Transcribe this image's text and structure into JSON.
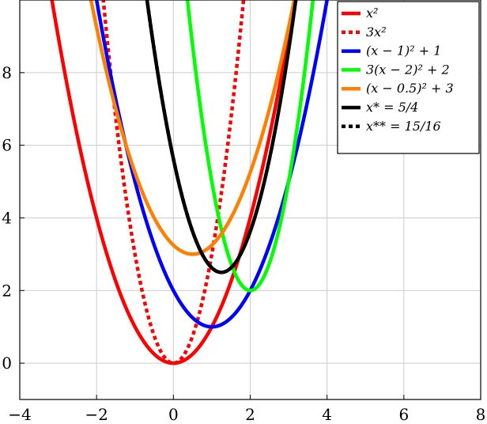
{
  "chart_data": {
    "type": "line",
    "xlim": [
      -4,
      8
    ],
    "ylim": [
      -1,
      10
    ],
    "x_ticks": [
      -4,
      -2,
      0,
      2,
      4,
      6,
      8
    ],
    "y_ticks": [
      0,
      2,
      4,
      6,
      8
    ],
    "grid": true,
    "legend_position": "top-right",
    "series": [
      {
        "name": "x²",
        "a": 1,
        "h": 0,
        "k": 0,
        "color": "#ff0000",
        "style": "solid",
        "x_range": [
          -4,
          8
        ]
      },
      {
        "name": "3x²",
        "a": 3,
        "h": 0,
        "k": 0,
        "color": "#ff0000",
        "style": "dotted",
        "x_range": [
          -4,
          8
        ]
      },
      {
        "name": "(x − 1)² + 1",
        "a": 1,
        "h": 1,
        "k": 1,
        "color": "#0000ff",
        "style": "solid",
        "x_range": [
          -4,
          8
        ]
      },
      {
        "name": "3(x − 2)² + 2",
        "a": 3,
        "h": 2,
        "k": 2,
        "color": "#00ff00",
        "style": "solid",
        "x_range": [
          -4,
          8
        ]
      },
      {
        "name": "(x − 0.5)² + 3",
        "a": 1,
        "h": 0.5,
        "k": 3,
        "color": "#ff8000",
        "style": "solid",
        "x_range": [
          -4,
          8
        ]
      },
      {
        "name": "x* = 5/4",
        "a": 2,
        "h": 1.25,
        "k": 2.5,
        "color": "#000000",
        "style": "solid",
        "x_range": [
          -4,
          8
        ]
      },
      {
        "name": "x** = 15/16",
        "a": 2,
        "h": 1.25,
        "k": 2.5,
        "color": "#000000",
        "style": "dotted",
        "x_range": [
          -4,
          1.25
        ]
      }
    ]
  }
}
